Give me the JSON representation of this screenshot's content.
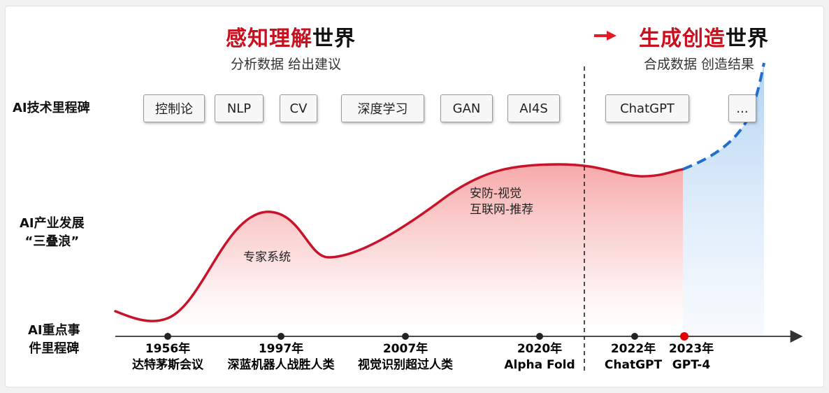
{
  "header_left": {
    "red": "感知理解",
    "black": "世界",
    "subtitle": "分析数据 给出建议"
  },
  "header_right": {
    "red": "生成创造",
    "black": "世界",
    "subtitle": "合成数据 创造结果"
  },
  "rows": {
    "tech": "AI技术里程碑",
    "industry_line1": "AI产业发展",
    "industry_line2": "“三叠浪”",
    "events_line1": "AI重点事",
    "events_line2": "件里程碑"
  },
  "tech_milestones": [
    "控制论",
    "NLP",
    "CV",
    "深度学习",
    "GAN",
    "AI4S",
    "ChatGPT",
    "..."
  ],
  "waves": {
    "wave1": "专家系统",
    "wave2_line1": "安防-视觉",
    "wave2_line2": "互联网-推荐"
  },
  "events": [
    {
      "year": "1956年",
      "desc": "达特茅斯会议"
    },
    {
      "year": "1997年",
      "desc": "深蓝机器人战胜人类"
    },
    {
      "year": "2007年",
      "desc": "视觉识别超过人类"
    },
    {
      "year": "2020年",
      "desc": "Alpha Fold"
    },
    {
      "year": "2022年",
      "desc": "ChatGPT"
    },
    {
      "year": "2023年",
      "desc": "GPT-4"
    }
  ],
  "colors": {
    "accent_red": "#c8101e",
    "curve_red": "#c8142a",
    "future_blue": "#1f6fd0",
    "text": "#1a1a1a"
  }
}
